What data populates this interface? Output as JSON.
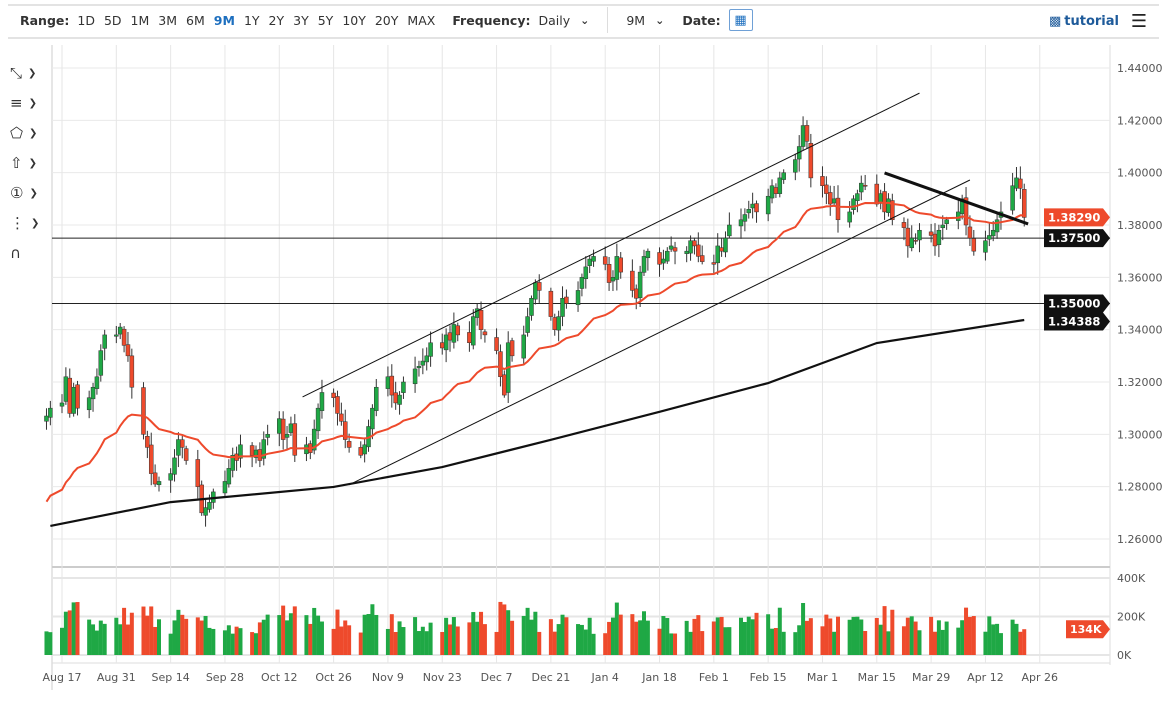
{
  "toolbar": {
    "range_label": "Range:",
    "ranges": [
      "1D",
      "5D",
      "1M",
      "3M",
      "6M",
      "9M",
      "1Y",
      "2Y",
      "3Y",
      "5Y",
      "10Y",
      "20Y",
      "MAX"
    ],
    "active_range": "9M",
    "frequency_label": "Frequency:",
    "frequency_value": "Daily",
    "period_value": "9M",
    "date_label": "Date:",
    "tutorial_label": "tutorial"
  },
  "side_tools": [
    "line-tool-icon",
    "fib-tool-icon",
    "shape-tool-icon",
    "arrow-tool-icon",
    "annotation-tool-icon",
    "indicator-tool-icon",
    "magnet-icon"
  ],
  "colors": {
    "up": "#1fa845",
    "down": "#ee4a2c",
    "ma_fast": "#ee4a2c",
    "ma_slow": "#111111",
    "accent": "#1d6fbf"
  },
  "chart_data": {
    "type": "candlestick",
    "start_date": "2020-08-13",
    "ylim": [
      1.25,
      1.445
    ],
    "y_ticks": [
      "1.44000",
      "1.42000",
      "1.40000",
      "1.38000",
      "1.36000",
      "1.34000",
      "1.32000",
      "1.30000",
      "1.28000",
      "1.26000"
    ],
    "x_ticks": [
      "Aug 17",
      "Aug 31",
      "Sep 14",
      "Sep 28",
      "Oct 12",
      "Oct 26",
      "Nov 9",
      "Nov 23",
      "Dec 7",
      "Dec 21",
      "Jan 4",
      "Jan 18",
      "Feb 1",
      "Feb 15",
      "Mar 1",
      "Mar 15",
      "Mar 29",
      "Apr 12",
      "Apr 26"
    ],
    "closes": [
      1.307,
      1.31,
      1.312,
      1.322,
      1.308,
      1.318,
      1.31,
      1.314,
      1.318,
      1.322,
      1.332,
      1.338,
      1.338,
      1.341,
      1.334,
      1.33,
      1.318,
      1.3,
      1.295,
      1.285,
      1.281,
      1.282,
      1.285,
      1.291,
      1.298,
      1.295,
      1.29,
      1.28,
      1.27,
      1.272,
      1.274,
      1.278,
      1.282,
      1.287,
      1.292,
      1.29,
      1.296,
      1.292,
      1.294,
      1.29,
      1.298,
      1.3,
      1.306,
      1.298,
      1.3,
      1.304,
      1.292,
      1.296,
      1.293,
      1.302,
      1.31,
      1.316,
      1.314,
      1.308,
      1.305,
      1.298,
      1.295,
      1.292,
      1.296,
      1.303,
      1.31,
      1.318,
      1.322,
      1.315,
      1.312,
      1.315,
      1.32,
      1.325,
      1.326,
      1.328,
      1.33,
      1.335,
      1.333,
      1.338,
      1.336,
      1.342,
      1.338,
      1.335,
      1.345,
      1.348,
      1.34,
      1.338,
      1.332,
      1.322,
      1.315,
      1.335,
      1.33,
      1.338,
      1.345,
      1.352,
      1.358,
      1.355,
      1.345,
      1.34,
      1.345,
      1.352,
      1.35,
      1.355,
      1.36,
      1.364,
      1.367,
      1.368,
      1.365,
      1.358,
      1.36,
      1.368,
      1.362,
      1.355,
      1.352,
      1.362,
      1.368,
      1.37,
      1.365,
      1.367,
      1.37,
      1.372,
      1.37,
      1.37,
      1.374,
      1.372,
      1.368,
      1.366,
      1.365,
      1.372,
      1.37,
      1.375,
      1.38,
      1.382,
      1.384,
      1.386,
      1.388,
      1.385,
      1.391,
      1.395,
      1.392,
      1.398,
      1.4,
      1.405,
      1.41,
      1.418,
      1.412,
      1.398,
      1.395,
      1.392,
      1.388,
      1.39,
      1.382,
      1.385,
      1.39,
      1.392,
      1.396,
      1.395,
      1.388,
      1.392,
      1.385,
      1.39,
      1.382,
      1.379,
      1.372,
      1.375,
      1.374,
      1.378,
      1.376,
      1.372,
      1.378,
      1.38,
      1.382,
      1.385,
      1.39,
      1.38,
      1.375,
      1.37,
      1.374,
      1.376,
      1.378,
      1.382,
      1.385,
      1.395,
      1.398,
      1.394,
      1.3829
    ],
    "ma_slow": [
      [
        "2020-08-14",
        1.265
      ],
      [
        "2020-09-14",
        1.2741
      ],
      [
        "2020-10-26",
        1.2799
      ],
      [
        "2020-11-23",
        1.2875
      ],
      [
        "2020-12-21",
        1.2979
      ],
      [
        "2021-01-18",
        1.3086
      ],
      [
        "2021-02-15",
        1.3196
      ],
      [
        "2021-03-15",
        1.3349
      ],
      [
        "2021-04-22",
        1.3437
      ]
    ],
    "trend_lines": [
      {
        "from": [
          "2020-10-18",
          1.3143
        ],
        "to": [
          "2021-03-26",
          1.4304
        ],
        "style": "thin"
      },
      {
        "from": [
          "2020-10-30",
          1.2807
        ],
        "to": [
          "2021-04-08",
          1.3972
        ],
        "style": "thin"
      },
      {
        "from": [
          "2021-03-17",
          1.3999
        ],
        "to": [
          "2021-04-23",
          1.3804
        ],
        "style": "thick"
      }
    ],
    "horizontal_lines": [
      1.375,
      1.35
    ],
    "price_labels": [
      {
        "value": "1.38290",
        "color": "#ee4a2c"
      },
      {
        "value": "1.37500",
        "color": "#111111"
      },
      {
        "value": "1.35000",
        "color": "#111111"
      },
      {
        "value": "1.34388",
        "color": "#111111"
      }
    ],
    "volume": {
      "y_ticks": [
        "400K",
        "200K",
        "0K"
      ],
      "ylim": [
        0,
        400000
      ],
      "last_label": "134K",
      "last": 134000
    }
  }
}
